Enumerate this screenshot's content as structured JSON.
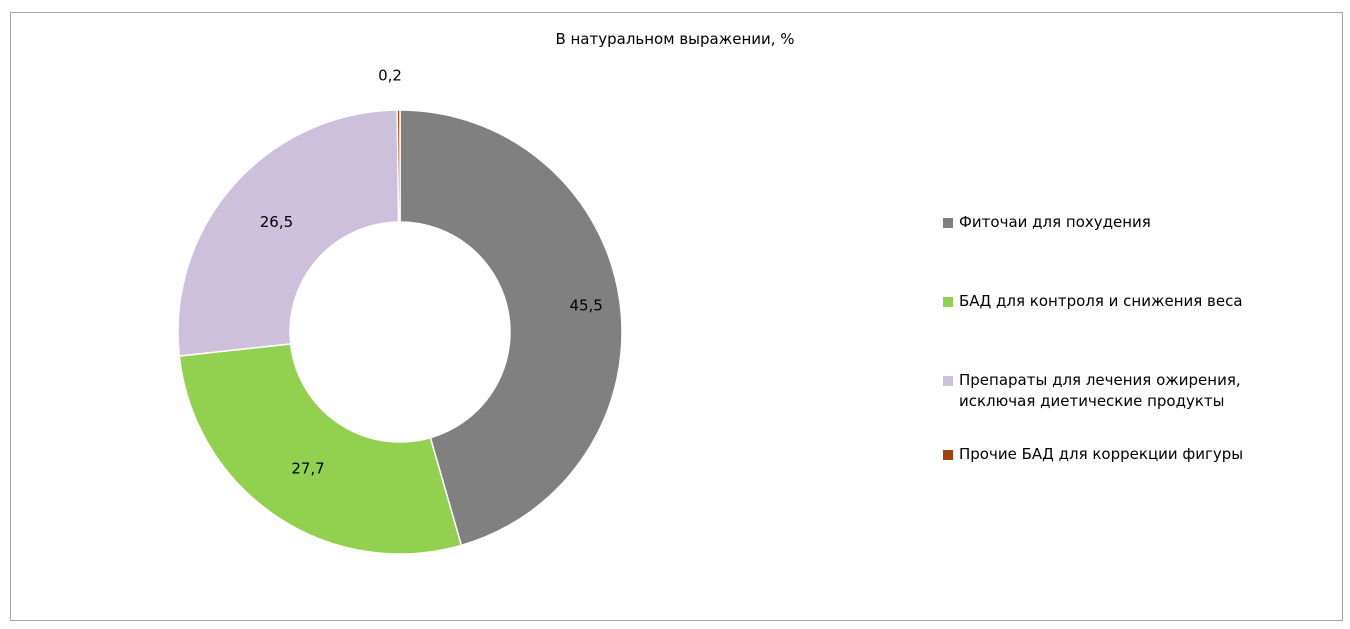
{
  "chart_data": {
    "type": "pie",
    "subtype": "donut",
    "title": "В натуральном выражении, %",
    "series": [
      {
        "name": "Фиточаи для похудения",
        "value": 45.5,
        "label": "45,5",
        "color": "#808080"
      },
      {
        "name": "БАД для контроля и снижения веса",
        "value": 27.7,
        "label": "27,7",
        "color": "#92d050"
      },
      {
        "name": "Препараты для лечения ожирения, исключая диетические продукты",
        "value": 26.5,
        "label": "26,5",
        "color": "#ccc0da"
      },
      {
        "name": "Прочие БАД для коррекции фигуры",
        "value": 0.2,
        "label": "0,2",
        "color": "#a5400c"
      }
    ],
    "legend_position": "right"
  }
}
